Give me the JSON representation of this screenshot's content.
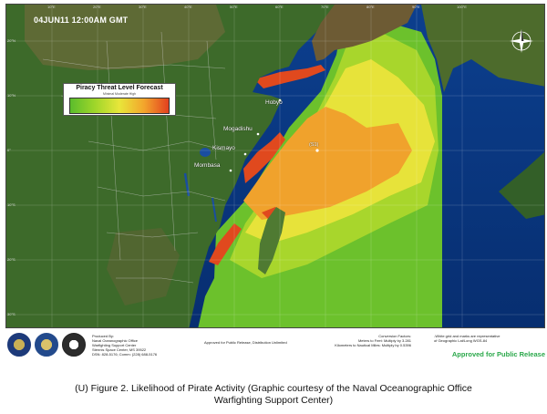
{
  "map": {
    "date_banner": "04JUN11 12:00AM GMT",
    "legend": {
      "title": "Piracy Threat Level Forecast",
      "subtitle": "Minimal              Moderate              High",
      "colors": [
        "#5bbd2c",
        "#9fd62a",
        "#e8e63a",
        "#f3a52c",
        "#e3401f"
      ]
    },
    "places": {
      "hobyo": "Hobyo",
      "mogadishu": "Mogadishu",
      "kismayo": "Kismayo",
      "mombasa": "Mombasa",
      "marker": "(S1)"
    },
    "lon_ticks": [
      "10°E",
      "20°E",
      "30°E",
      "40°E",
      "50°E",
      "60°E",
      "70°E",
      "80°E",
      "90°E",
      "100°E"
    ],
    "lat_ticks": [
      "20°N",
      "10°N",
      "0°",
      "10°S",
      "20°S",
      "30°S"
    ]
  },
  "footer": {
    "produced": [
      "Produced By:",
      "Naval Oceanographic Office",
      "Warfighting Support Center",
      "Stennis Space Center, MS 39522",
      "DSN: 828-5176; Comm: (228) 688-5176"
    ],
    "approved_center": "Approved for Public Release, Distribution Unlimited",
    "conversion": [
      "Conversion Factors:",
      "Meters to Feet: Multiply by 3.281",
      "Kilometers to Nautical Miles: Multiply by 0.5396"
    ],
    "grid_note": [
      "-White grid and marks are representative",
      "of Geographic Lat/Long WGS-84"
    ],
    "approved_right": "Approved for Public Release"
  },
  "caption": {
    "line1": "(U) Figure 2.  Likelihood of Pirate Activity (Graphic courtesy of the Naval Oceanographic Office",
    "line2": "Warfighting Support Center)"
  }
}
